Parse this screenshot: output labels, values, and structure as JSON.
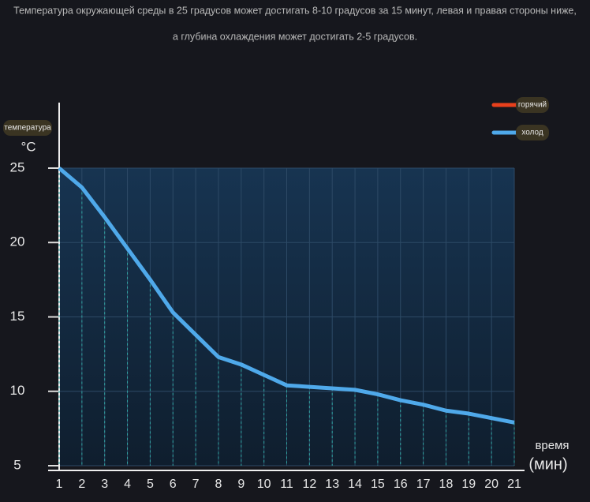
{
  "chart_data": {
    "type": "line",
    "title": "Температура окружающей среды в 25 градусов может достигать 8-10 градусов за 15 минут, левая и правая стороны ниже,",
    "subtitle": "а глубина охлаждения может достигать 2-5 градусов.",
    "y_label": "температура",
    "y_unit": "°C",
    "x_label": "время",
    "x_unit": "(мин)",
    "x": [
      1,
      2,
      3,
      4,
      5,
      6,
      7,
      8,
      9,
      10,
      11,
      12,
      13,
      14,
      15,
      16,
      17,
      18,
      19,
      20,
      21
    ],
    "series": [
      {
        "name": "горячий",
        "color": "#e8401c",
        "values": [
          null,
          null,
          null,
          null,
          null,
          null,
          null,
          null,
          null,
          null,
          null,
          null,
          null,
          null,
          null,
          null,
          null,
          null,
          null,
          null,
          null
        ]
      },
      {
        "name": "холод",
        "color": "#4fa9ea",
        "values": [
          25,
          23.7,
          21.7,
          19.6,
          17.5,
          15.3,
          13.8,
          12.3,
          11.8,
          11.1,
          10.4,
          10.3,
          10.2,
          10.1,
          9.8,
          9.4,
          9.1,
          8.7,
          8.5,
          8.2,
          7.9
        ]
      }
    ],
    "xlim": [
      1,
      21
    ],
    "xticks": [
      1,
      2,
      3,
      4,
      5,
      6,
      7,
      8,
      9,
      10,
      11,
      12,
      13,
      14,
      15,
      16,
      17,
      18,
      19,
      20,
      21
    ],
    "ylim": [
      5,
      25
    ],
    "yticks": [
      5,
      10,
      15,
      20,
      25
    ],
    "grid": true,
    "legend": "top-right"
  }
}
